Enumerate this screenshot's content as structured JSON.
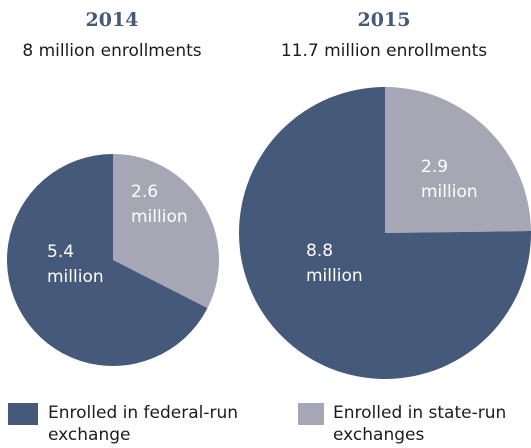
{
  "colors": {
    "federal": "#45597a",
    "state": "#a6a6b4"
  },
  "chart_data": [
    {
      "type": "pie",
      "title": "2014",
      "subtitle": "8 million enrollments",
      "slices": [
        {
          "series": "state",
          "value": 2.6,
          "label_value": "2.6",
          "label_unit": "million"
        },
        {
          "series": "federal",
          "value": 5.4,
          "label_value": "5.4",
          "label_unit": "million"
        }
      ]
    },
    {
      "type": "pie",
      "title": "2015",
      "subtitle": "11.7 million enrollments",
      "slices": [
        {
          "series": "state",
          "value": 2.9,
          "label_value": "2.9",
          "label_unit": "million"
        },
        {
          "series": "federal",
          "value": 8.8,
          "label_value": "8.8",
          "label_unit": "million"
        }
      ]
    }
  ],
  "legend": {
    "federal": {
      "line1": "Enrolled in federal-run",
      "line2": "exchange"
    },
    "state": {
      "line1": "Enrolled in state-run",
      "line2": "exchanges"
    }
  }
}
